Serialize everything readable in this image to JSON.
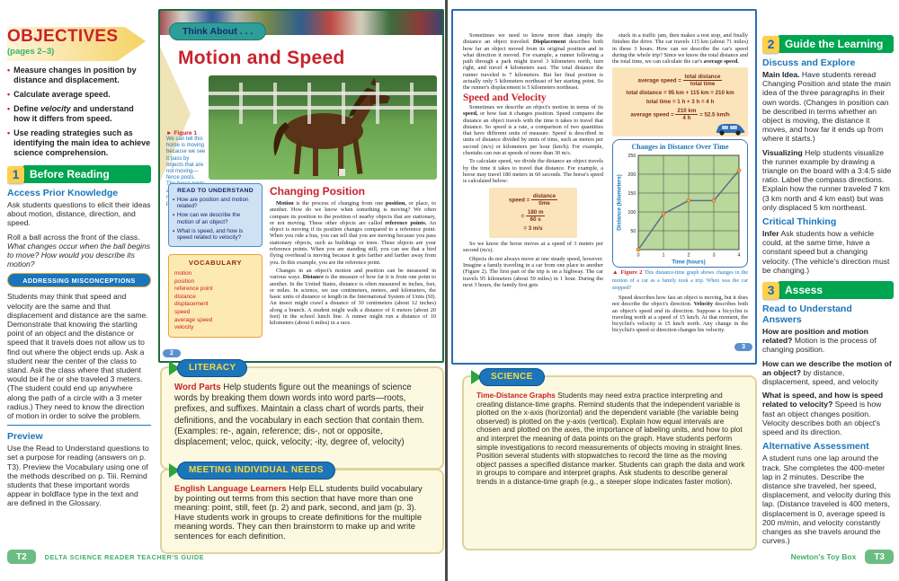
{
  "left_sidebar": {
    "title": "OBJECTIVES",
    "pages": "(pages 2–3)",
    "objectives": [
      {
        "r1": "Measure changes in position by distance and displacement.",
        "it": "",
        "r2": ""
      },
      {
        "r1": "Calculate average speed.",
        "it": "",
        "r2": ""
      },
      {
        "r1": "Define ",
        "it": "velocity",
        "r2": " and understand how it differs from speed."
      },
      {
        "r1": "Use reading strategies such as identifying the main idea to achieve science comprehension.",
        "it": "",
        "r2": ""
      }
    ],
    "step1": {
      "num": "1",
      "label": "Before Reading"
    },
    "apk_heading": "Access Prior Knowledge",
    "apk_p1": "Ask students questions to elicit their ideas about motion, distance, direction, and speed.",
    "apk_p2_normal": "Roll a ball across the front of the class. ",
    "apk_p2_italic": "What changes occur when the ball begins to move? How would you describe its motion?",
    "misconceptions_label": "ADDRESSING MISCONCEPTIONS",
    "misconceptions_text": "Students may think that speed and velocity are the same and that displacement and distance are the same. Demonstrate that knowing the starting point of an object and the distance or speed that it travels does not allow us to find out where the object ends up. Ask a student near the center of the class to stand. Ask the class where that student would be if he or she traveled 3 meters. (The student could end up anywhere along the path of a circle with a 3 meter radius.) They need to know the direction of motion in order to solve the problem.",
    "preview_heading": "Preview",
    "preview_text": "Use the Read to Understand questions to set a purpose for reading (answers on p. T3). Preview the Vocabulary using one of the methods described on p. Tiii. Remind students that these important words appear in boldface type in the text and are defined in the Glossary."
  },
  "left_footer": {
    "tab": "T2",
    "label": "DELTA SCIENCE READER TEACHER'S GUIDE"
  },
  "book_left": {
    "tab": "Think About . . .",
    "title": "Motion and Speed",
    "figure1": {
      "arrow": "►",
      "label": "Figure 1",
      "caption": "We can tell this horse is moving because we see it pass by objects that are not moving—fence posts. The fence posts are our reference points."
    },
    "rtu_title": "READ TO UNDERSTAND",
    "rtu_bullet": "▪",
    "rtu_items": [
      "How are position and motion related?",
      "How can we describe the motion of an object?",
      "What is speed, and how is speed related to velocity?"
    ],
    "vocab_title": "VOCABULARY",
    "vocab_words": [
      "motion",
      "position",
      "reference point",
      "distance",
      "displacement",
      "speed",
      "average speed",
      "velocity"
    ],
    "heading": "Changing Position",
    "p1": [
      "Motion",
      " is the process of changing from one ",
      "position,",
      " or place, to another. How do we know when something is moving? We often compare its position to the position of nearby objects that are stationary, or not moving. These other objects are called ",
      "reference points.",
      " An object is moving if its position changes compared to a reference point. When you ride a bus, you can tell that you are moving because you pass stationary objects, such as buildings or trees. These objects are your reference points. When you are standing still, you can see that a bird flying overhead is moving because it gets farther and farther away from you. In this example, you are the reference point."
    ],
    "p2": [
      "Changes in an object's motion and position can be measured in various ways. ",
      "Distance",
      " is the measure of how far it is from one point to another. In the United States, distance is often measured in inches, feet, or miles. In science, we use centimeters, meters, and kilometers, the basic units of distance or length in the International System of Units (SI). An insect might crawl a distance of 30 centimeters (about 12 inches) along a branch. A student might walk a distance of 6 meters (about 20 feet) in the school lunch line. A runner might run a distance of 10 kilometers (about 6 miles) in a race."
    ],
    "page_num": "2"
  },
  "book_right": {
    "c1p1": [
      "Sometimes we need to know more than simply the distance an object traveled. ",
      "Displacement",
      " describes both how far an object moved from its original position and in what direction it moved. For example, a runner following a path through a park might travel 3 kilometers north, turn right, and travel 4 kilometers east. The total distance the runner traveled is 7 kilometers. But her final position is actually only 5 kilometers northeast of her starting point. So the runner's displacement is 5 kilometers northeast."
    ],
    "heading": "Speed and Velocity",
    "c1p2": [
      "Sometimes we describe an object's motion in terms of its ",
      "speed,",
      " or how fast it changes position. Speed compares the distance an object travels with the time it takes to travel that distance. So speed is a rate, a comparison of two quantities that have different units of measure. Speed is described in units of distance divided by units of time, such as meters per second (m/s) or kilometers per hour (km/h). For example, cheetahs can run at speeds of more than 30 m/s."
    ],
    "c1p3": "To calculate speed, we divide the distance an object travels by the time it takes to travel that distance. For example, a horse may travel 180 meters in 60 seconds. The horse's speed is calculated below:",
    "speed_box": {
      "lhs": "speed =",
      "num": "distance",
      "den": "time",
      "eq2": "=",
      "num2": "180 m",
      "den2": "60 s",
      "result": "= 3 m/s"
    },
    "c1p4": "So we know the horse moves at a speed of 3 meters per second (m/s).",
    "c1p5": "Objects do not always move at one steady speed, however. Imagine a family traveling in a car from one place to another (Figure 2). The first part of the trip is on a highway. The car travels 95 kilometers (about 59 miles) in 1 hour. During the next 3 hours, the family first gets",
    "c2p1": [
      "stuck in a traffic jam, then makes a rest stop, and finally finishes the drive. The car travels 115 km (about 71 miles) in these 3 hours. How can we describe the car's speed during the whole trip? Since we know the total distance and the total time, we can calculate the car's ",
      "average speed."
    ],
    "avg_box": {
      "l1_lhs": "average speed =",
      "l1_num": "total distance",
      "l1_den": "total time",
      "l2": "total distance = 95 km + 115 km = 210 km",
      "l3": "total time = 1 h + 3 h = 4 h",
      "l4_lhs": "average speed =",
      "l4_num": "210 km",
      "l4_den": "4 h",
      "l4_result": "= 52.5 km/h"
    },
    "figure2": {
      "arrow": "▲",
      "label": "Figure 2",
      "caption": "This distance-time graph shows changes in the motion of a car as a family took a trip. When was the car stopped?"
    },
    "c2p2": [
      "Speed describes how fast an object is moving, but it does not describe the object's direction. ",
      "Velocity",
      " describes both an object's speed ",
      "and",
      " its direction. Suppose a bicyclist is traveling north at a speed of 15 km/h. At that moment, the bicyclist's velocity is 15 km/h north. Any change in the bicyclist's speed or direction changes his velocity."
    ],
    "page_num": "3"
  },
  "chart_data": {
    "type": "line",
    "title": "Changes in Distance Over Time",
    "xlabel": "Time (hours)",
    "ylabel": "Distance (kilometers)",
    "x": [
      0,
      1,
      2,
      3,
      4
    ],
    "y": [
      0,
      95,
      130,
      130,
      210
    ],
    "xlim": [
      0,
      4
    ],
    "ylim": [
      0,
      250
    ],
    "xticks": [
      0,
      1,
      2,
      3,
      4
    ],
    "yticks": [
      0,
      50,
      100,
      150,
      200,
      250
    ],
    "grid": true,
    "line_color": "#63688a",
    "point_color": "#f2a44b",
    "plot_bg": "#b9d89c"
  },
  "right_sidebar": {
    "step2": {
      "num": "2",
      "label": "Guide the Learning"
    },
    "discuss_heading": "Discuss and Explore",
    "main_idea_lead": "Main Idea.",
    "main_idea_text": " Have students reread Changing Position and state the main idea of the three paragraphs in their own words. (Changes in position can be described in terms whether an object is moving, the distance it moves, and how far it ends up from where it starts.)",
    "visualizing_lead": "Visualizing",
    "visualizing_text": "  Help students visualize the runner example by drawing a triangle on the board with a 3:4:5 side ratio. Label the compass directions. Explain how the runner traveled 7 km (3 km north and 4 km east) but was only displaced 5 km northeast.",
    "critical_heading": "Critical Thinking",
    "infer_lead": "Infer",
    "infer_text": "  Ask students how a vehicle could, at the same time, have a constant speed but a changing velocity. (The vehicle's direction must be changing.)",
    "step3": {
      "num": "3",
      "label": "Assess"
    },
    "rtu_heading": "Read to Understand Answers",
    "qa": [
      {
        "q": "How are position and motion related?",
        "a": " Motion is the process of changing position."
      },
      {
        "q": "How can we describe the motion of an object?",
        "a": " by distance, displacement, speed, and velocity"
      },
      {
        "q": "What is speed, and how is speed related to velocity?",
        "a": " Speed is how fast an object changes position. Velocity describes both an object's speed and its direction."
      }
    ],
    "alt_heading": "Alternative Assessment",
    "alt_text": "A student runs one lap around the track. She completes the 400-meter lap in 2 minutes. Describe the distance she traveled, her speed, displacement, and velocity during this lap. (Distance traveled is 400 meters, displacement is 0, average speed is 200 m/min, and velocity constantly changes as she travels around the curves.)"
  },
  "right_footer": {
    "label": "Newton's  Toy  Box",
    "tab": "T3"
  },
  "boxes": {
    "literacy": {
      "title": "LITERACY",
      "lead": "Word Parts",
      "text": "  Help students figure out the meanings of science words by breaking them down words into word parts—roots, prefixes, and suffixes. Maintain a class chart of words parts, their definitions, and the vocabulary in each section that contain them. (Examples: re-, again, reference; dis-, not or opposite, displacement; veloc, quick, velocity; -ity, degree of, velocity)"
    },
    "min": {
      "title": "MEETING INDIVIDUAL NEEDS",
      "lead": "English Language Learners",
      "text": "  Help ELL students build vocabulary by pointing out terms from this section that have more than one meaning: point, still, feet (p. 2) and park, second, and jam (p. 3). Have students work in groups to create definitions for the multiple meaning words. They can then brainstorm to make up and write sentences for each definition."
    },
    "science": {
      "title": "SCIENCE",
      "lead": "Time-Distance Graphs",
      "text": "  Students may need extra practice interpreting and creating distance-time graphs. Remind students that the independent variable is plotted on the x-axis (horizontal) and the dependent variable (the variable being observed) is plotted on the y-axis (vertical). Explain how equal intervals are chosen and plotted on the axes, the importance of labeling units, and how to plot and interpret the meaning of data points on the graph. Have students perform simple investigations to record measurements of objects moving in straight lines. Position several students with stopwatches to record the time as the moving object passes a specified distance marker. Students can graph the data and work in groups to compare and interpret graphs. Ask students to describe general trends in a distance-time graph (e.g., a steeper slope indicates faster motion)."
    }
  }
}
